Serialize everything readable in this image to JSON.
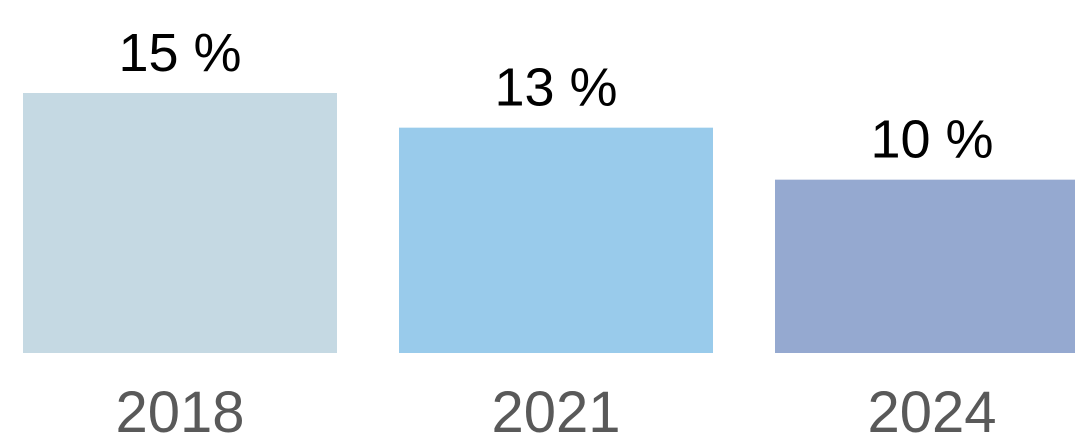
{
  "chart_data": {
    "type": "bar",
    "categories": [
      "2018",
      "2021",
      "2024"
    ],
    "values": [
      15,
      13,
      10
    ],
    "value_labels": [
      "15 %",
      "13 %",
      "10 %"
    ],
    "colors": [
      "#c5d9e3",
      "#99cbeb",
      "#95a9d0"
    ]
  }
}
